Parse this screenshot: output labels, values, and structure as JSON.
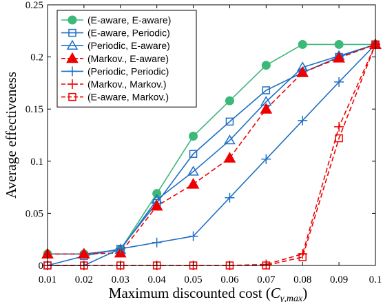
{
  "chart_data": {
    "type": "line",
    "xlabel": "Maximum discounted cost (",
    "xlabel_symbol": "C",
    "xlabel_subscript": "γ,max",
    "xlabel_close": ")",
    "ylabel": "Average effectiveness",
    "x": [
      0.01,
      0.02,
      0.03,
      0.04,
      0.05,
      0.06,
      0.07,
      0.08,
      0.09,
      0.1
    ],
    "x_tick_labels": [
      "0.01",
      "0.02",
      "0.03",
      "0.04",
      "0.05",
      "0.06",
      "0.07",
      "0.08",
      "0.09",
      "0.1"
    ],
    "y_ticks": [
      0,
      0.05,
      0.1,
      0.15,
      0.2,
      0.25
    ],
    "y_tick_labels": [
      "0",
      "0.05",
      "0.1",
      "0.15",
      "0.2",
      "0.25"
    ],
    "xlim": [
      0.01,
      0.1
    ],
    "ylim": [
      0,
      0.25
    ],
    "grid": false,
    "legend_position": "top-left",
    "series": [
      {
        "name": "(E-aware, E-aware)",
        "color": "#3cb878",
        "marker": "filled-circle",
        "dash": "solid",
        "values": [
          0.011,
          0.011,
          0.015,
          0.069,
          0.124,
          0.158,
          0.192,
          0.212,
          0.212,
          0.212
        ]
      },
      {
        "name": "(E-aware, Periodic)",
        "color": "#1f6fc5",
        "marker": "square",
        "dash": "solid",
        "values": [
          0.0,
          0.009,
          0.016,
          0.06,
          0.107,
          0.138,
          0.168,
          0.185,
          0.2,
          0.212
        ]
      },
      {
        "name": "(Periodic, E-aware)",
        "color": "#1f6fc5",
        "marker": "triangle",
        "dash": "solid",
        "values": [
          0.011,
          0.011,
          0.015,
          0.063,
          0.09,
          0.12,
          0.157,
          0.19,
          0.201,
          0.212
        ]
      },
      {
        "name": "(Markov., E-aware)",
        "color": "#ee0000",
        "marker": "filled-triangle",
        "dash": "dashed",
        "values": [
          0.011,
          0.011,
          0.012,
          0.057,
          0.078,
          0.103,
          0.15,
          0.185,
          0.199,
          0.212
        ]
      },
      {
        "name": "(Periodic, Periodic)",
        "color": "#1f6fc5",
        "marker": "plus",
        "dash": "solid",
        "values": [
          0.0,
          0.0,
          0.016,
          0.022,
          0.028,
          0.065,
          0.102,
          0.139,
          0.176,
          0.212
        ]
      },
      {
        "name": "(Markov., Markov.)",
        "color": "#ee0000",
        "marker": "plus",
        "dash": "dashed",
        "values": [
          0.0,
          0.0,
          0.0,
          0.0,
          0.0,
          0.0,
          0.001,
          0.011,
          0.133,
          0.212
        ]
      },
      {
        "name": "(E-aware, Markov.)",
        "color": "#ee0000",
        "marker": "square",
        "dash": "dashed",
        "values": [
          0.0,
          0.0,
          0.0,
          0.0,
          0.0,
          0.0,
          0.0,
          0.008,
          0.122,
          0.212
        ]
      }
    ]
  }
}
